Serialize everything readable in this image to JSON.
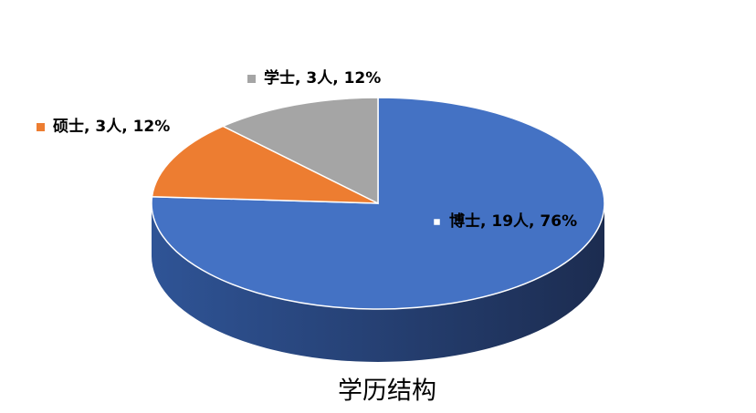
{
  "chart_data": {
    "type": "pie",
    "title": "学历结构",
    "values": [
      19,
      3,
      3
    ],
    "value_labels": [
      "博士, 19人, 76%",
      "硕士, 3人, 12%",
      "学士, 3人, 12%"
    ],
    "colors": [
      "#4472c4",
      "#ed7d31",
      "#a5a5a5"
    ]
  }
}
